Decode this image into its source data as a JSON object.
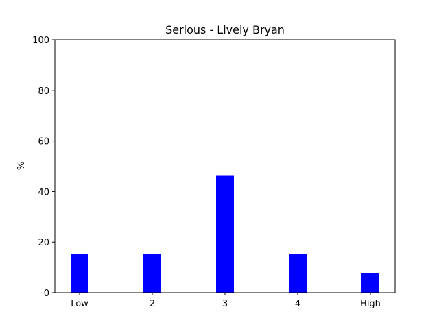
{
  "chart_data": {
    "type": "bar",
    "title": "Serious - Lively Bryan",
    "xlabel": "",
    "ylabel": "%",
    "categories": [
      "Low",
      "2",
      "3",
      "4",
      "High"
    ],
    "values": [
      15.4,
      15.4,
      46.2,
      15.4,
      7.7
    ],
    "ylim": [
      0,
      100
    ],
    "yticks": [
      "0",
      "20",
      "40",
      "60",
      "80",
      "100"
    ],
    "grid": false,
    "bar_color": "#0000ff"
  }
}
